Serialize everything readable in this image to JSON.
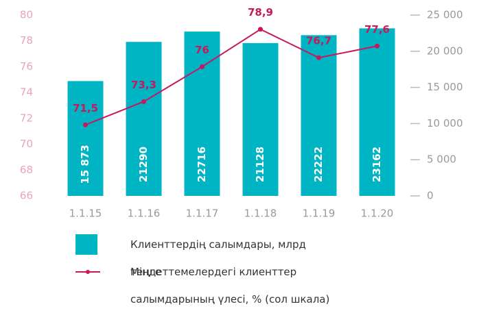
{
  "chart_data": {
    "type": "bar_line",
    "categories": [
      "1.1.15",
      "1.1.16",
      "1.1.17",
      "1.1.18",
      "1.1.19",
      "1.1.20"
    ],
    "series": [
      {
        "name": "Клиенттердің салымдары, млрд теңге",
        "type": "bar",
        "axis": "y2",
        "color": "#00b5c3",
        "values": [
          15873,
          21290,
          22716,
          21128,
          22222,
          23162
        ],
        "value_labels": [
          "15 873",
          "21290",
          "22716",
          "21128",
          "22222",
          "23162"
        ]
      },
      {
        "name": "Міндеттемелердегі клиенттер салымдарының үлесі, % (сол шкала)",
        "type": "line",
        "axis": "y",
        "color": "#c8175d",
        "values": [
          71.5,
          73.3,
          76,
          78.9,
          76.7,
          77.6
        ],
        "value_labels": [
          "71,5",
          "73,3",
          "76",
          "78,9",
          "76,7",
          "77,6"
        ]
      }
    ],
    "ylim": [
      66,
      80
    ],
    "yticks": [
      66,
      68,
      70,
      72,
      74,
      76,
      78,
      80
    ],
    "y2lim": [
      0,
      25000
    ],
    "y2ticks": [
      0,
      {
        "value": 5000,
        "label": "5 000"
      },
      {
        "value": 10000,
        "label": "10 000"
      },
      {
        "value": 15000,
        "label": "15 000"
      },
      {
        "value": 20000,
        "label": "20 000"
      },
      {
        "value": 25000,
        "label": "25 000"
      }
    ]
  }
}
